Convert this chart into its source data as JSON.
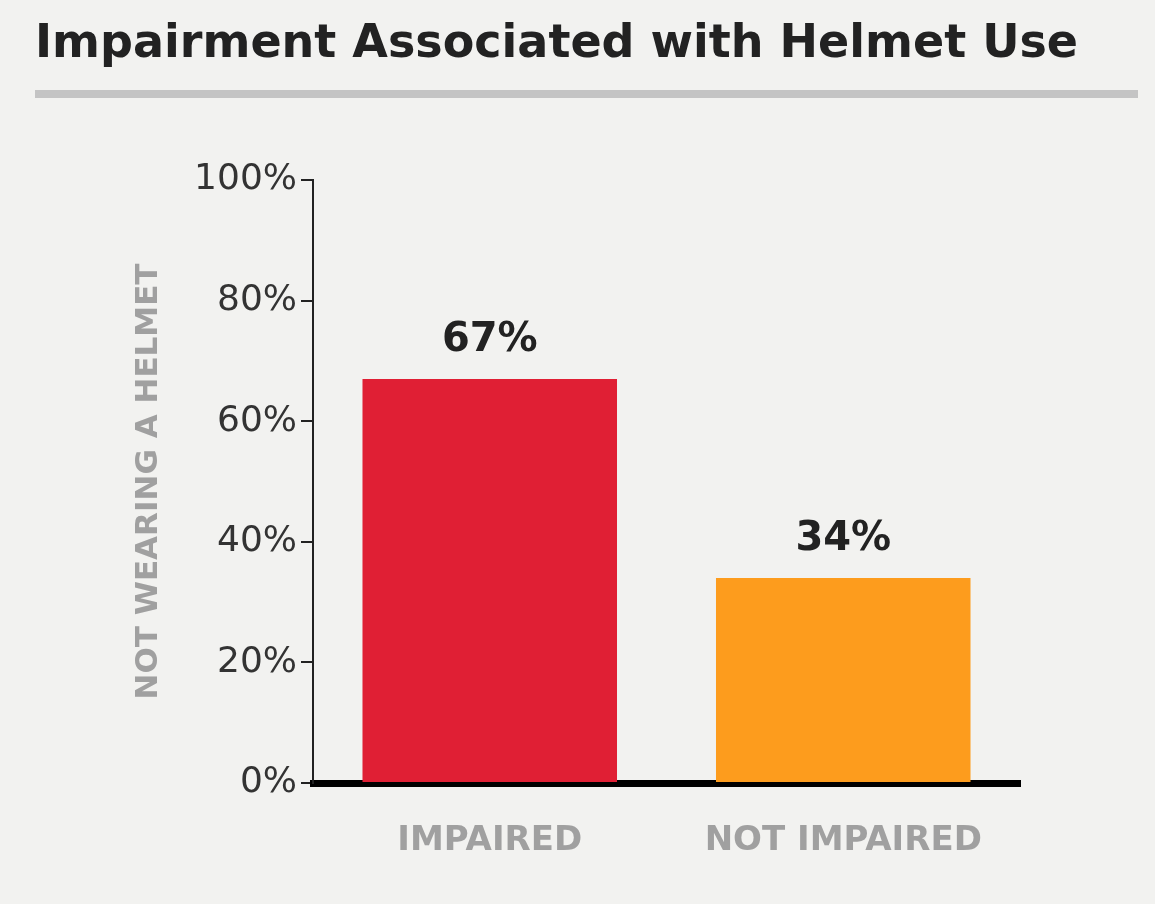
{
  "chart_data": {
    "type": "bar",
    "title": "Impairment Associated with Helmet Use",
    "ylabel": "NOT WEARING A HELMET",
    "categories": [
      "IMPAIRED",
      "NOT IMPAIRED"
    ],
    "values": [
      67,
      34
    ],
    "colors": [
      "#e01f34",
      "#fd9c1d"
    ],
    "value_labels": [
      "67%",
      "34%"
    ],
    "ylim": [
      0,
      100
    ],
    "yticks": [
      {
        "value": 0,
        "label": "0%"
      },
      {
        "value": 20,
        "label": "20%"
      },
      {
        "value": 40,
        "label": "40%"
      },
      {
        "value": 60,
        "label": "60%"
      },
      {
        "value": 80,
        "label": "80%"
      },
      {
        "value": 100,
        "label": "100%"
      }
    ]
  }
}
